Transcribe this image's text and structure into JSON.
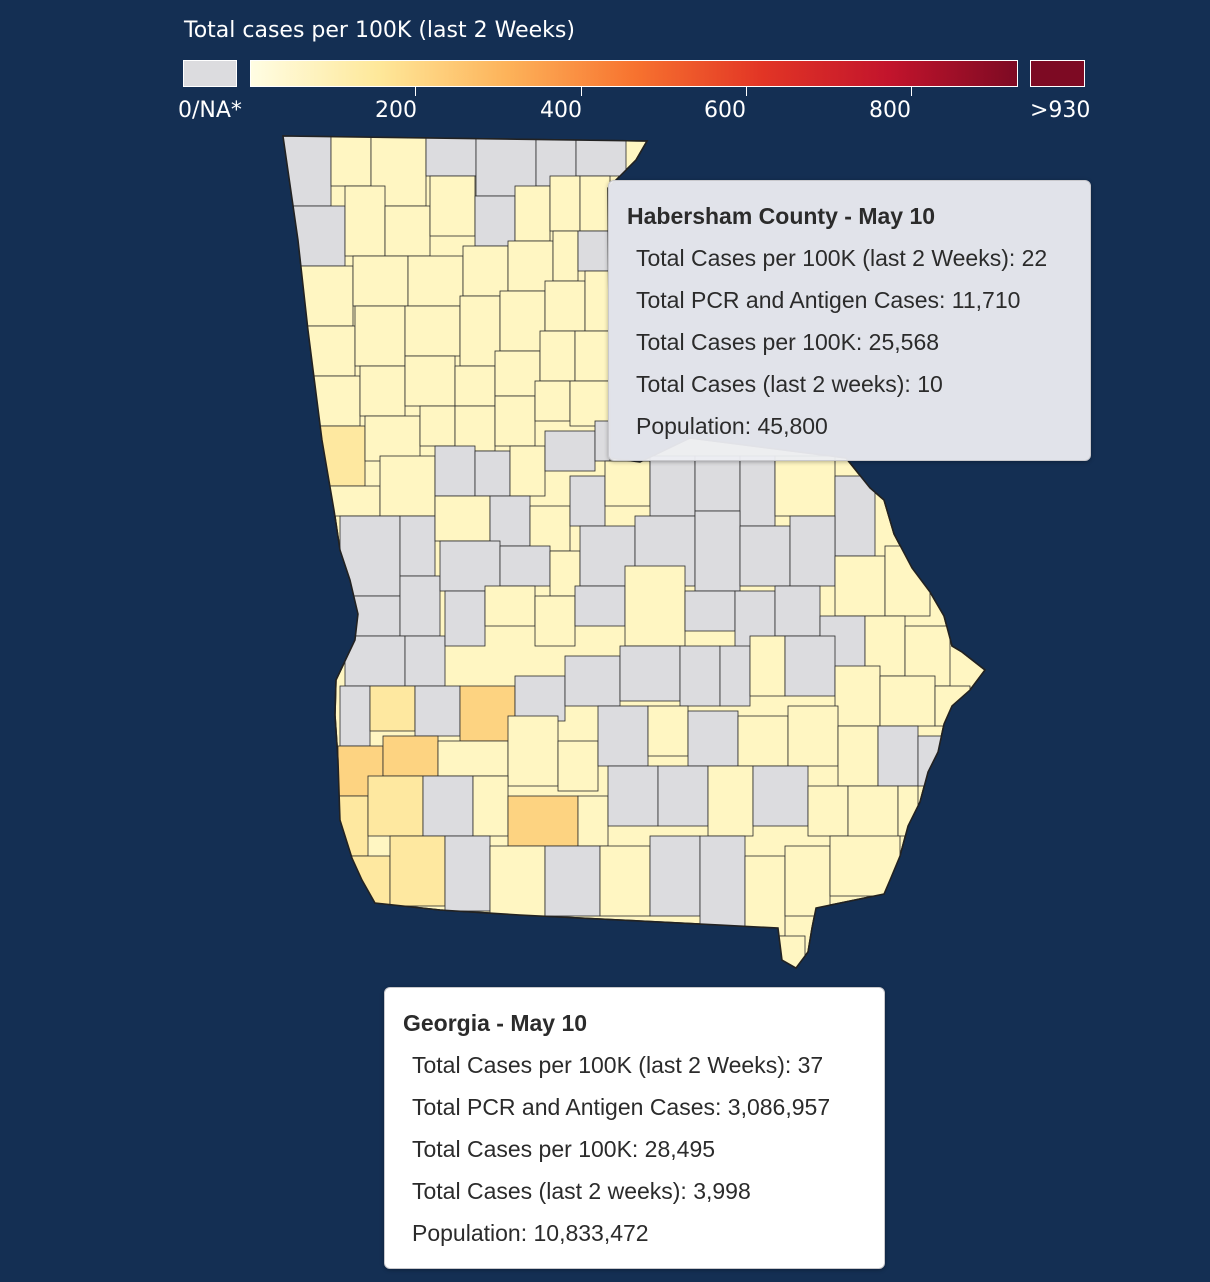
{
  "legend": {
    "title": "Total cases per 100K (last 2 Weeks)",
    "na_label": "0/NA*",
    "max_label": ">930",
    "ticks": [
      "200",
      "400",
      "600",
      "800"
    ],
    "na_color": "#dcdcdf",
    "max_color": "#7d0a23",
    "gradient_colors": [
      "#fffde3",
      "#fee89a",
      "#fdb35a",
      "#f7732f",
      "#e23525",
      "#c2142c",
      "#7d0a23"
    ]
  },
  "map": {
    "state": "Georgia",
    "background_color": "#142f53",
    "county_colors": {
      "na": "#dcdcdf",
      "low": "#fff6c2",
      "mid": "#fee8a0",
      "high": "#fdd381"
    }
  },
  "county_tooltip": {
    "title": "Habersham County - May 10",
    "rows": [
      "Total Cases per 100K (last 2 Weeks): 22",
      "Total PCR and Antigen Cases: 11,710",
      "Total Cases per 100K: 25,568",
      "Total Cases (last 2 weeks): 10",
      "Population: 45,800"
    ]
  },
  "state_tooltip": {
    "title": "Georgia - May 10",
    "rows": [
      "Total Cases per 100K (last 2 Weeks): 37",
      "Total PCR and Antigen Cases: 3,086,957",
      "Total Cases per 100K: 28,495",
      "Total Cases (last 2 weeks): 3,998",
      "Population: 10,833,472"
    ]
  }
}
